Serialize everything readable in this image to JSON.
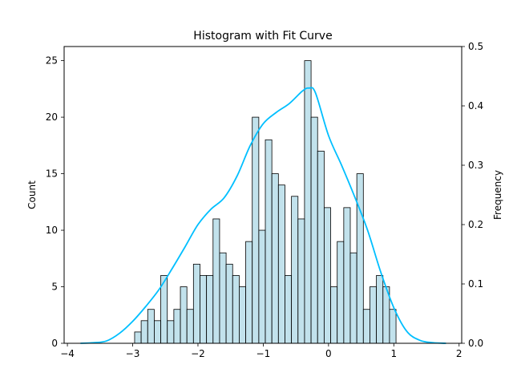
{
  "chart_data": {
    "type": "bar",
    "title": "Histogram with Fit Curve",
    "xlabel": "",
    "ylabel": "Count",
    "y2label": "Frequency",
    "xlim": [
      -4.05,
      2.04
    ],
    "ylim": [
      0,
      26.25
    ],
    "y2lim": [
      0,
      0.5
    ],
    "xticks": [
      -4,
      -3,
      -2,
      -1,
      0,
      1,
      2
    ],
    "yticks": [
      0,
      5,
      10,
      15,
      20,
      25
    ],
    "y2ticks": [
      0.0,
      0.1,
      0.2,
      0.3,
      0.4,
      0.5
    ],
    "grid": false,
    "bins": {
      "start": -2.97,
      "width": 0.1001,
      "counts": [
        1,
        2,
        3,
        2,
        6,
        2,
        3,
        5,
        3,
        7,
        6,
        6,
        11,
        8,
        7,
        6,
        5,
        9,
        20,
        10,
        18,
        15,
        14,
        6,
        13,
        11,
        25,
        20,
        17,
        12,
        5,
        9,
        12,
        8,
        15,
        3,
        5,
        6,
        5,
        3
      ]
    },
    "bar_fill": "#add8e6",
    "bar_edge": "#000000",
    "fit_curve": {
      "color": "#00bfff",
      "x": [
        -3.8,
        -3.6,
        -3.4,
        -3.2,
        -3.0,
        -2.8,
        -2.6,
        -2.4,
        -2.2,
        -2.0,
        -1.8,
        -1.6,
        -1.4,
        -1.2,
        -1.0,
        -0.8,
        -0.6,
        -0.4,
        -0.3,
        -0.2,
        0.0,
        0.2,
        0.4,
        0.6,
        0.8,
        1.0,
        1.2,
        1.4,
        1.6,
        1.8
      ],
      "y": [
        0.0,
        0.001,
        0.004,
        0.017,
        0.037,
        0.062,
        0.09,
        0.125,
        0.162,
        0.2,
        0.226,
        0.245,
        0.282,
        0.333,
        0.37,
        0.389,
        0.404,
        0.425,
        0.43,
        0.422,
        0.35,
        0.3,
        0.247,
        0.19,
        0.12,
        0.06,
        0.02,
        0.005,
        0.001,
        0.0
      ]
    }
  }
}
